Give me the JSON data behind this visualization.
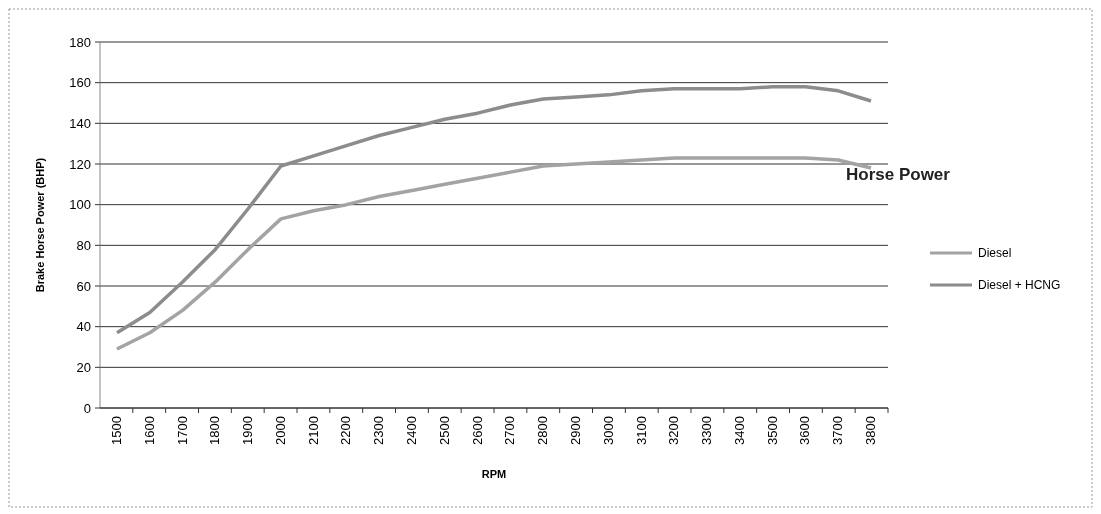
{
  "chart_data": {
    "type": "line",
    "title": "Horse Power",
    "xlabel": "RPM",
    "ylabel": "Brake Horse Power (BHP)",
    "categories": [
      "1500",
      "1600",
      "1700",
      "1800",
      "1900",
      "2000",
      "2100",
      "2200",
      "2300",
      "2400",
      "2500",
      "2600",
      "2700",
      "2800",
      "2900",
      "3000",
      "3100",
      "3200",
      "3300",
      "3400",
      "3500",
      "3600",
      "3700",
      "3800"
    ],
    "series": [
      {
        "name": "Diesel",
        "color": "#a3a3a3",
        "values": [
          29,
          37,
          48,
          62,
          78,
          93,
          97,
          100,
          104,
          107,
          110,
          113,
          116,
          119,
          120,
          121,
          122,
          123,
          123,
          123,
          123,
          123,
          122,
          118
        ]
      },
      {
        "name": "Diesel + HCNG",
        "color": "#8c8c8c",
        "values": [
          37,
          47,
          62,
          78,
          98,
          119,
          124,
          129,
          134,
          138,
          142,
          145,
          149,
          152,
          153,
          154,
          156,
          157,
          157,
          157,
          158,
          158,
          156,
          151
        ]
      }
    ],
    "ylim": [
      0,
      180
    ],
    "yticks": [
      0,
      20,
      40,
      60,
      80,
      100,
      120,
      140,
      160,
      180
    ],
    "grid": "y",
    "legend": "right",
    "marker": "none",
    "line_style": "solid"
  }
}
